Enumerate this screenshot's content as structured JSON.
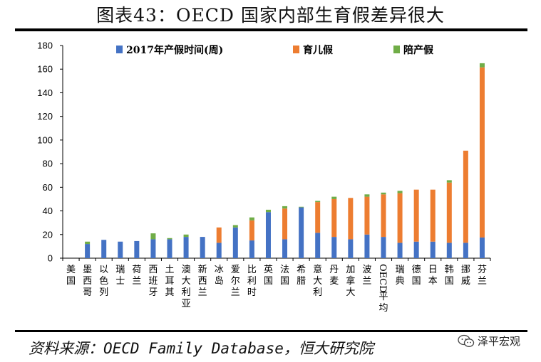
{
  "title": "图表43：OECD 国家内部生育假差异很大",
  "source": "资料来源：OECD Family Database，恒大研究院",
  "watermark": "泽平宏观",
  "colors": {
    "series0": "#4472C4",
    "series1": "#ED7D31",
    "series2": "#70AD47"
  },
  "chart_data": {
    "type": "bar",
    "stacked": true,
    "title": "图表43：OECD 国家内部生育假差异很大",
    "xlabel": "",
    "ylabel": "",
    "ylim": [
      0,
      180
    ],
    "yticks": [
      0,
      20,
      40,
      60,
      80,
      100,
      120,
      140,
      160,
      180
    ],
    "categories": [
      "美国",
      "墨西哥",
      "以色列",
      "瑞士",
      "荷兰",
      "西班牙",
      "土耳其",
      "澳大利亚",
      "新西兰",
      "冰岛",
      "爱尔兰",
      "比利时",
      "英国",
      "法国",
      "希腊",
      "意大利",
      "丹麦",
      "加拿大",
      "波兰",
      "OECD平均",
      "瑞典",
      "德国",
      "日本",
      "韩国",
      "挪威",
      "芬兰"
    ],
    "series": [
      {
        "name": "2017年产假时间(周)",
        "values": [
          0,
          12,
          15.5,
          14,
          14.5,
          16,
          16,
          18,
          18,
          13,
          26,
          15,
          39,
          16,
          43,
          21.5,
          18,
          16,
          20,
          18,
          13,
          14,
          14,
          13,
          13,
          17.5
        ]
      },
      {
        "name": "育儿假",
        "values": [
          0,
          0,
          0,
          0,
          0,
          0,
          0,
          0,
          0,
          13,
          0,
          17,
          0,
          26,
          0,
          26,
          32,
          35,
          32,
          36,
          42,
          44,
          44,
          51,
          78,
          144
        ]
      },
      {
        "name": "陪产假",
        "values": [
          0,
          2,
          0,
          0,
          0,
          5,
          1,
          2,
          0,
          0,
          2,
          2.5,
          2,
          2,
          0.5,
          1,
          2,
          0,
          2,
          1.5,
          2,
          0,
          0,
          2,
          0,
          3.5
        ]
      }
    ],
    "legend": "top",
    "grid": false
  }
}
